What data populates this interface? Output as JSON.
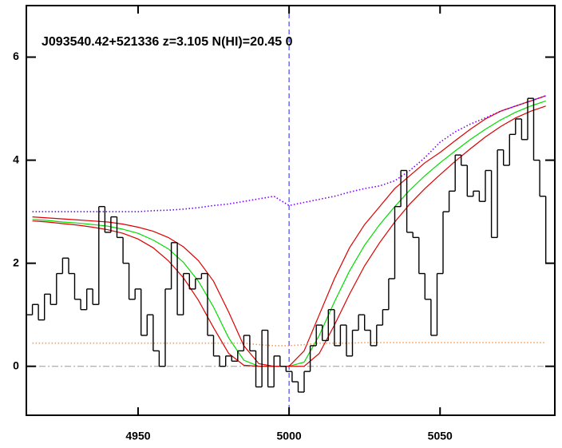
{
  "chart_data": {
    "type": "spectrum",
    "annotation": "J093540.42+521336 z=3.105 N(HI)=20.45 0",
    "xlim": [
      4913,
      5088
    ],
    "ylim": [
      -0.95,
      7
    ],
    "xticks": [
      4950,
      5000,
      5050
    ],
    "yticks": [
      0,
      2,
      4,
      6
    ],
    "hlines": [
      0
    ],
    "vlines": [
      5000
    ],
    "flux": {
      "color": "#000000",
      "x": [
        4914,
        4916,
        4918,
        4920,
        4922,
        4924,
        4926,
        4928,
        4930,
        4932,
        4934,
        4936,
        4938,
        4940,
        4942,
        4944,
        4946,
        4948,
        4950,
        4952,
        4954,
        4956,
        4958,
        4960,
        4962,
        4964,
        4966,
        4968,
        4970,
        4972,
        4974,
        4976,
        4978,
        4980,
        4982,
        4984,
        4986,
        4988,
        4990,
        4992,
        4994,
        4996,
        4998,
        5000,
        5002,
        5004,
        5006,
        5008,
        5010,
        5012,
        5014,
        5016,
        5018,
        5020,
        5022,
        5024,
        5026,
        5028,
        5030,
        5032,
        5034,
        5036,
        5038,
        5040,
        5042,
        5044,
        5046,
        5048,
        5050,
        5052,
        5054,
        5056,
        5058,
        5060,
        5062,
        5064,
        5066,
        5068,
        5070,
        5072,
        5074,
        5076,
        5078,
        5080,
        5082,
        5084,
        5086
      ],
      "values": [
        1.0,
        1.2,
        0.9,
        1.4,
        1.2,
        1.8,
        2.1,
        1.8,
        1.3,
        1.1,
        1.5,
        1.2,
        3.1,
        2.6,
        2.9,
        2.5,
        2.0,
        1.3,
        1.5,
        0.6,
        1.0,
        0.3,
        0.0,
        1.5,
        2.4,
        1.0,
        1.8,
        1.5,
        1.7,
        1.8,
        0.6,
        0.2,
        0.0,
        0.2,
        0.1,
        0.3,
        0.6,
        0.3,
        -0.4,
        0.7,
        -0.4,
        0.2,
        0.0,
        -0.1,
        -0.3,
        -0.5,
        -0.1,
        0.4,
        0.8,
        0.5,
        1.1,
        0.4,
        0.8,
        0.2,
        0.7,
        1.0,
        0.7,
        0.4,
        0.8,
        1.1,
        1.7,
        3.1,
        3.8,
        2.6,
        2.5,
        1.8,
        1.3,
        0.6,
        1.8,
        3.0,
        3.4,
        4.1,
        3.9,
        3.3,
        3.4,
        3.2,
        3.8,
        2.5,
        4.2,
        3.9,
        4.5,
        4.8,
        4.4,
        5.2,
        4.0,
        3.3,
        2.0
      ]
    },
    "model_x": [
      4915,
      4920,
      4925,
      4930,
      4935,
      4940,
      4945,
      4950,
      4955,
      4960,
      4965,
      4970,
      4975,
      4980,
      4985,
      4990,
      4995,
      5000,
      5005,
      5010,
      5015,
      5020,
      5025,
      5030,
      5035,
      5040,
      5045,
      5050,
      5055,
      5060,
      5065,
      5070,
      5075,
      5080,
      5085
    ],
    "series": [
      {
        "color": "#00dd00",
        "style": "solid",
        "values": [
          2.85,
          2.83,
          2.8,
          2.78,
          2.75,
          2.72,
          2.66,
          2.58,
          2.45,
          2.28,
          2.02,
          1.65,
          1.15,
          0.55,
          0.12,
          0.0,
          0.0,
          0.0,
          0.08,
          0.6,
          1.25,
          1.85,
          2.35,
          2.75,
          3.1,
          3.42,
          3.7,
          3.95,
          4.18,
          4.4,
          4.6,
          4.78,
          4.93,
          5.05,
          5.15
        ]
      },
      {
        "color": "#dd0000",
        "style": "solid",
        "values": [
          2.9,
          2.88,
          2.86,
          2.84,
          2.82,
          2.8,
          2.76,
          2.7,
          2.62,
          2.5,
          2.32,
          2.05,
          1.65,
          1.05,
          0.4,
          0.05,
          0.0,
          0.0,
          0.3,
          1.0,
          1.7,
          2.3,
          2.75,
          3.1,
          3.45,
          3.7,
          3.95,
          4.15,
          4.38,
          4.6,
          4.8,
          4.95,
          5.05,
          5.15,
          5.25
        ]
      },
      {
        "color": "#dd0000",
        "style": "solid",
        "values": [
          2.82,
          2.8,
          2.77,
          2.74,
          2.7,
          2.65,
          2.58,
          2.47,
          2.3,
          2.05,
          1.72,
          1.28,
          0.75,
          0.25,
          0.02,
          0.0,
          0.0,
          0.0,
          0.0,
          0.25,
          0.8,
          1.4,
          1.95,
          2.4,
          2.8,
          3.15,
          3.45,
          3.72,
          3.98,
          4.22,
          4.45,
          4.65,
          4.82,
          4.95,
          5.05
        ]
      },
      {
        "color": "#7a00ff",
        "style": "dotted",
        "values": [
          3.0,
          3.0,
          3.0,
          3.0,
          3.0,
          3.0,
          3.0,
          3.0,
          3.02,
          3.03,
          3.05,
          3.08,
          3.12,
          3.15,
          3.2,
          3.25,
          3.3,
          3.12,
          3.18,
          3.24,
          3.3,
          3.38,
          3.45,
          3.5,
          3.6,
          3.8,
          4.05,
          4.35,
          4.55,
          4.7,
          4.82,
          4.95,
          5.05,
          5.15,
          5.25
        ]
      },
      {
        "color": "#ff9a40",
        "style": "dotted",
        "values": [
          0.45,
          0.45,
          0.45,
          0.45,
          0.45,
          0.45,
          0.45,
          0.45,
          0.45,
          0.45,
          0.45,
          0.45,
          0.45,
          0.45,
          0.45,
          0.42,
          0.4,
          0.4,
          0.42,
          0.45,
          0.45,
          0.45,
          0.46,
          0.46,
          0.46,
          0.46,
          0.46,
          0.46,
          0.46,
          0.46,
          0.46,
          0.46,
          0.46,
          0.46,
          0.46
        ]
      }
    ]
  }
}
